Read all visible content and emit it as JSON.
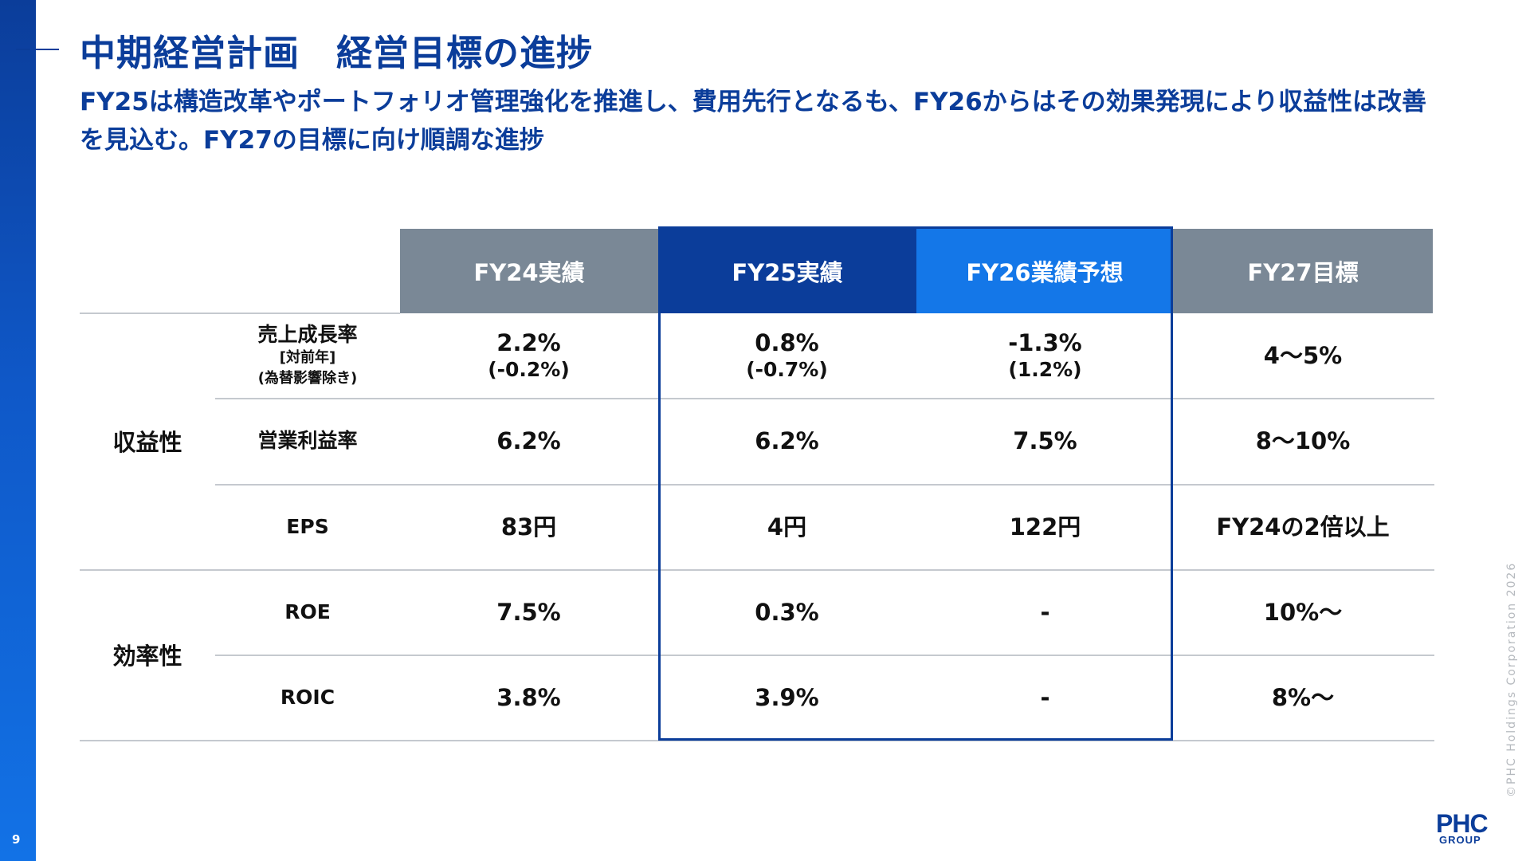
{
  "page": {
    "number": "9",
    "title": "中期経営計画　経営目標の進捗",
    "subtitle": "FY25は構造改革やポートフォリオ管理強化を推進し、費用先行となるも、FY26からはその効果発現により収益性は改善を見込む。FY27の目標に向け順調な進捗",
    "copyright": "©PHC Holdings Corporation 2026",
    "logo_text": "PHC GROUP"
  },
  "colors": {
    "navy": "#0b3d9a",
    "blue": "#1477e8",
    "grey_header": "#7a8896"
  },
  "table": {
    "headers": [
      "FY24実績",
      "FY25実績",
      "FY26業績予想",
      "FY27目標"
    ],
    "categories": [
      "収益性",
      "効率性"
    ],
    "rows": [
      {
        "label": "売上成長率",
        "label_sub1": "[対前年]",
        "label_sub2": "(為替影響除き)",
        "cells": [
          {
            "value": "2.2%",
            "sub": "(-0.2%)"
          },
          {
            "value": "0.8%",
            "sub": "(-0.7%)"
          },
          {
            "value": "-1.3%",
            "sub": "(1.2%)"
          },
          {
            "value": "4～5%"
          }
        ]
      },
      {
        "label": "営業利益率",
        "cells": [
          {
            "value": "6.2%"
          },
          {
            "value": "6.2%"
          },
          {
            "value": "7.5%"
          },
          {
            "value": "8～10%"
          }
        ]
      },
      {
        "label": "EPS",
        "cells": [
          {
            "value": "83円"
          },
          {
            "value": "4円"
          },
          {
            "value": "122円"
          },
          {
            "value": "FY24の2倍以上"
          }
        ]
      },
      {
        "label": "ROE",
        "cells": [
          {
            "value": "7.5%"
          },
          {
            "value": "0.3%"
          },
          {
            "value": "-"
          },
          {
            "value": "10%～"
          }
        ]
      },
      {
        "label": "ROIC",
        "cells": [
          {
            "value": "3.8%"
          },
          {
            "value": "3.9%"
          },
          {
            "value": "-"
          },
          {
            "value": "8%～"
          }
        ]
      }
    ]
  }
}
